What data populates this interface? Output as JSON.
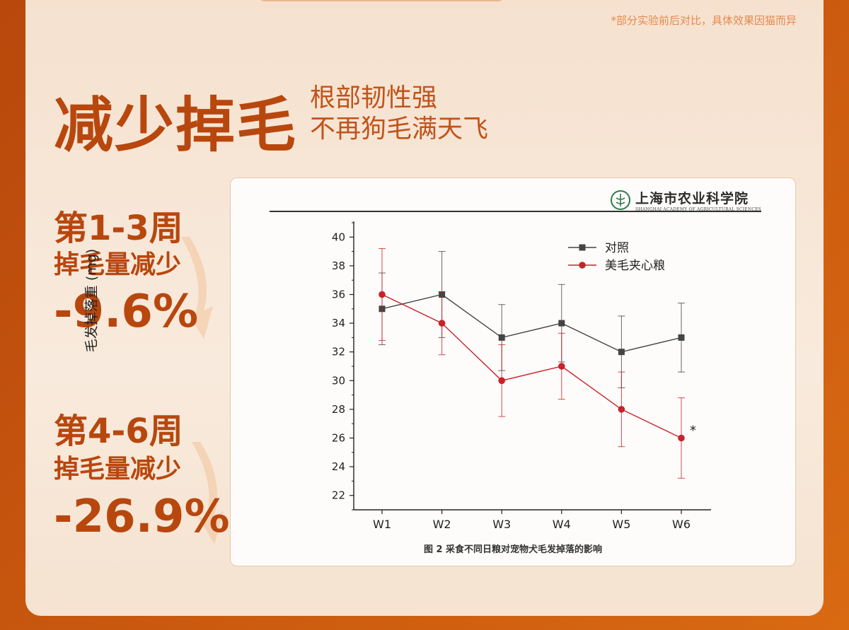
{
  "disclaimer": "*部分实验前后对比，具体效果因猫而异",
  "headline": {
    "title": "减少掉毛",
    "subtitle_line1": "根部韧性强",
    "subtitle_line2": "不再狗毛满天飞"
  },
  "stats": [
    {
      "period": "第1-3周",
      "desc": "掉毛量减少",
      "value": "-9.6%"
    },
    {
      "period": "第4-6周",
      "desc": "掉毛量减少",
      "value": "-26.9%"
    }
  ],
  "logo": {
    "name": "上海市农业科学院",
    "sub": "SHANGHAI ACADEMY OF AGRICULTURAL SCIENCES"
  },
  "colors": {
    "accent": "#b8470e",
    "control_series": "#444444",
    "treatment_series": "#c8222a"
  },
  "chart_data": {
    "type": "line",
    "title": "图 2 采食不同日粮对宠物犬毛发掉落的影响",
    "xlabel": "",
    "ylabel": "毛发掉落重 (mg)",
    "categories": [
      "W1",
      "W2",
      "W3",
      "W4",
      "W5",
      "W6"
    ],
    "ylim": [
      21,
      41
    ],
    "yticks": [
      22,
      24,
      26,
      28,
      30,
      32,
      34,
      36,
      38,
      40
    ],
    "legend_position": "top-right",
    "series": [
      {
        "name": "对照",
        "marker": "square",
        "values": [
          35,
          36,
          33,
          34,
          32,
          33
        ],
        "error": [
          [
            32.5,
            37.5
          ],
          [
            33,
            39
          ],
          [
            30.7,
            35.3
          ],
          [
            31.3,
            36.7
          ],
          [
            29.5,
            34.5
          ],
          [
            30.6,
            35.4
          ]
        ]
      },
      {
        "name": "美毛夹心粮",
        "marker": "circle",
        "values": [
          36,
          34,
          30,
          31,
          28,
          26
        ],
        "error": [
          [
            32.8,
            39.2
          ],
          [
            31.8,
            36.2
          ],
          [
            27.5,
            32.5
          ],
          [
            28.7,
            33.3
          ],
          [
            25.4,
            30.6
          ],
          [
            23.2,
            28.8
          ]
        ]
      }
    ],
    "annotations": [
      {
        "category": "W6",
        "text": "*"
      }
    ]
  }
}
